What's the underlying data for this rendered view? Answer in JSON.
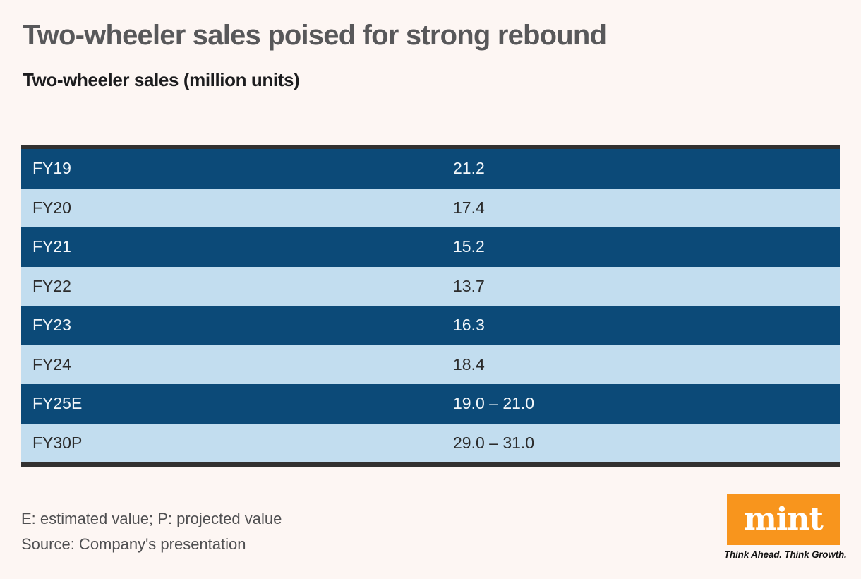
{
  "title": "Two-wheeler sales poised for strong rebound",
  "subtitle": "Two-wheeler sales (million units)",
  "chart_data": {
    "type": "table",
    "title": "Two-wheeler sales poised for strong rebound",
    "subtitle": "Two-wheeler sales (million units)",
    "unit": "million units",
    "categories": [
      "FY19",
      "FY20",
      "FY21",
      "FY22",
      "FY23",
      "FY24",
      "FY25E",
      "FY30P"
    ],
    "values": [
      "21.2",
      "17.4",
      "15.2",
      "13.7",
      "16.3",
      "18.4",
      "19.0 – 21.0",
      "29.0 – 31.0"
    ],
    "numeric_values": [
      21.2,
      17.4,
      15.2,
      13.7,
      16.3,
      18.4,
      [
        19.0,
        21.0
      ],
      [
        29.0,
        31.0
      ]
    ],
    "row_style": "alternating dark-blue / light-blue stripes starting dark"
  },
  "footer": {
    "note": "E: estimated value; P: projected value",
    "source": "Source: Company's presentation"
  },
  "brand": {
    "logo_text": "mint",
    "tagline": "Think Ahead. Think Growth."
  },
  "colors": {
    "background": "#fdf6f3",
    "row_dark_blue": "#0c4a78",
    "row_light_blue": "#c2ddef",
    "edge_bar": "#323130",
    "title_gray": "#58585a",
    "subtitle_black": "#1c1c1e",
    "footnote_gray": "#4f4f51",
    "brand_orange": "#f8951d",
    "row_text_on_dark": "#f3f7fa",
    "row_text_on_light": "#2b2b2b"
  }
}
